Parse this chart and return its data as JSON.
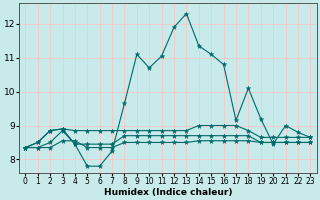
{
  "xlabel": "Humidex (Indice chaleur)",
  "background_color": "#c8eaea",
  "grid_color": "#f5c8c8",
  "line_color": "#006868",
  "xlim": [
    -0.5,
    23.5
  ],
  "ylim": [
    7.6,
    12.6
  ],
  "yticks": [
    8,
    9,
    10,
    11,
    12
  ],
  "xticks": [
    0,
    1,
    2,
    3,
    4,
    5,
    6,
    7,
    8,
    9,
    10,
    11,
    12,
    13,
    14,
    15,
    16,
    17,
    18,
    19,
    20,
    21,
    22,
    23
  ],
  "series": [
    {
      "x": [
        0,
        1,
        2,
        3,
        4,
        5,
        6,
        7,
        8,
        9,
        10,
        11,
        12,
        13,
        14,
        15,
        16,
        17,
        18,
        19,
        20,
        21,
        22,
        23
      ],
      "y": [
        8.35,
        8.5,
        8.85,
        8.9,
        8.45,
        7.8,
        7.8,
        8.25,
        9.65,
        11.1,
        10.7,
        11.05,
        11.9,
        12.3,
        11.35,
        11.1,
        10.8,
        9.15,
        10.1,
        9.2,
        8.45,
        9.0,
        8.8,
        8.65
      ]
    },
    {
      "x": [
        0,
        1,
        2,
        3,
        4,
        5,
        6,
        7,
        8,
        9,
        10,
        11,
        12,
        13,
        14,
        15,
        16,
        17,
        18,
        19,
        20,
        21,
        22,
        23
      ],
      "y": [
        8.35,
        8.5,
        8.85,
        8.9,
        8.85,
        8.85,
        8.85,
        8.85,
        8.85,
        8.85,
        8.85,
        8.85,
        8.85,
        8.85,
        9.0,
        9.0,
        9.0,
        9.0,
        8.85,
        8.65,
        8.65,
        8.65,
        8.65,
        8.65
      ]
    },
    {
      "x": [
        0,
        1,
        2,
        3,
        4,
        5,
        6,
        7,
        8,
        9,
        10,
        11,
        12,
        13,
        14,
        15,
        16,
        17,
        18,
        19,
        20,
        21,
        22,
        23
      ],
      "y": [
        8.35,
        8.35,
        8.5,
        8.85,
        8.45,
        8.45,
        8.45,
        8.45,
        8.7,
        8.7,
        8.7,
        8.7,
        8.7,
        8.7,
        8.7,
        8.7,
        8.7,
        8.7,
        8.7,
        8.5,
        8.5,
        8.5,
        8.5,
        8.5
      ]
    },
    {
      "x": [
        0,
        1,
        2,
        3,
        4,
        5,
        6,
        7,
        8,
        9,
        10,
        11,
        12,
        13,
        14,
        15,
        16,
        17,
        18,
        19,
        20,
        21,
        22,
        23
      ],
      "y": [
        8.35,
        8.35,
        8.35,
        8.55,
        8.55,
        8.35,
        8.35,
        8.35,
        8.5,
        8.5,
        8.5,
        8.5,
        8.5,
        8.5,
        8.55,
        8.55,
        8.55,
        8.55,
        8.55,
        8.5,
        8.5,
        8.5,
        8.5,
        8.5
      ]
    }
  ]
}
